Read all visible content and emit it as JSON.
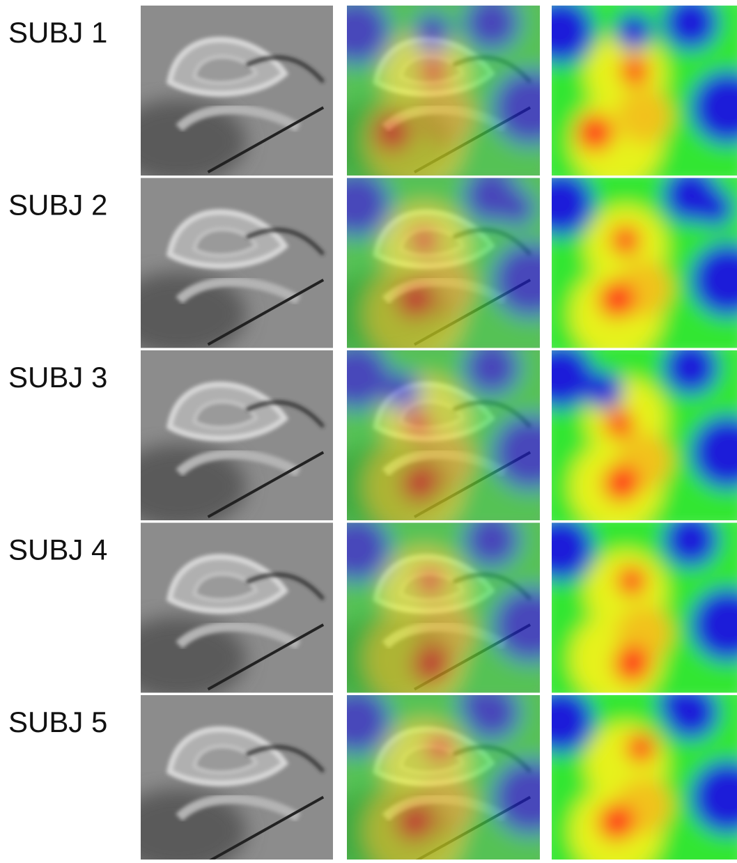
{
  "rows": [
    {
      "label": "SUBJ 1"
    },
    {
      "label": "SUBJ 2"
    },
    {
      "label": "SUBJ 3"
    },
    {
      "label": "SUBJ 4"
    },
    {
      "label": "SUBJ 5"
    }
  ]
}
